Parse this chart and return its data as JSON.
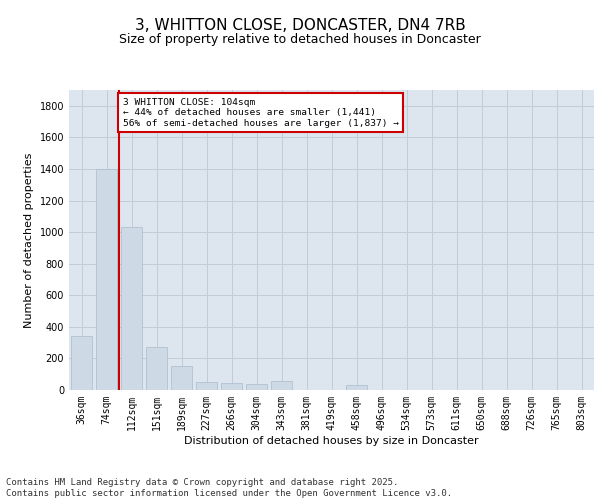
{
  "title_line1": "3, WHITTON CLOSE, DONCASTER, DN4 7RB",
  "title_line2": "Size of property relative to detached houses in Doncaster",
  "xlabel": "Distribution of detached houses by size in Doncaster",
  "ylabel": "Number of detached properties",
  "categories": [
    "36sqm",
    "74sqm",
    "112sqm",
    "151sqm",
    "189sqm",
    "227sqm",
    "266sqm",
    "304sqm",
    "343sqm",
    "381sqm",
    "419sqm",
    "458sqm",
    "496sqm",
    "534sqm",
    "573sqm",
    "611sqm",
    "650sqm",
    "688sqm",
    "726sqm",
    "765sqm",
    "803sqm"
  ],
  "values": [
    340,
    1400,
    1030,
    270,
    155,
    50,
    45,
    35,
    60,
    0,
    0,
    30,
    0,
    0,
    0,
    0,
    0,
    0,
    0,
    0,
    0
  ],
  "bar_color": "#cdd9e5",
  "bar_edge_color": "#aabccc",
  "vline_color": "#cc0000",
  "annotation_text": "3 WHITTON CLOSE: 104sqm\n← 44% of detached houses are smaller (1,441)\n56% of semi-detached houses are larger (1,837) →",
  "annotation_box_color": "#cc0000",
  "annotation_box_fill": "white",
  "ylim": [
    0,
    1900
  ],
  "yticks": [
    0,
    200,
    400,
    600,
    800,
    1000,
    1200,
    1400,
    1600,
    1800
  ],
  "grid_color": "#c0ccd8",
  "background_color": "#dde6ef",
  "footer_text": "Contains HM Land Registry data © Crown copyright and database right 2025.\nContains public sector information licensed under the Open Government Licence v3.0.",
  "title_fontsize": 11,
  "subtitle_fontsize": 9,
  "axis_label_fontsize": 8,
  "tick_fontsize": 7,
  "footer_fontsize": 6.5
}
